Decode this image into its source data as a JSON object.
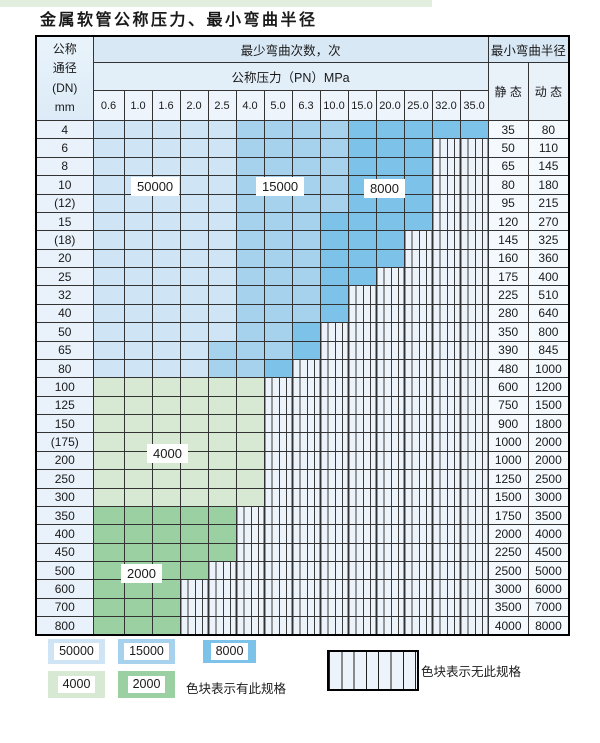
{
  "title": "金属软管公称压力、最小弯曲半径",
  "table": {
    "dn_header_lines": [
      "公称",
      "通径",
      "(DN)",
      "mm"
    ],
    "bend_cycles_header": "最少弯曲次数，次",
    "pressure_header": "公称压力（PN）MPa",
    "radius_header": "最小弯曲半径",
    "static_label": "静 态",
    "dynamic_label": "动 态",
    "pressure_columns": [
      "0.6",
      "1.0",
      "1.6",
      "2.0",
      "2.5",
      "4.0",
      "5.0",
      "6.3",
      "10.0",
      "15.0",
      "20.0",
      "25.0",
      "32.0",
      "35.0"
    ],
    "zone_legend_key": {
      "A": "50000",
      "B": "15000",
      "C": "8000",
      "D": "4000",
      "E": "2000",
      "H": "no-spec-hatch"
    },
    "zone_labels": [
      {
        "text": "50000"
      },
      {
        "text": "15000"
      },
      {
        "text": "8000"
      },
      {
        "text": "4000"
      },
      {
        "text": "2000"
      }
    ],
    "rows": [
      {
        "dn": "4",
        "cells": "AAAAABBBBCCCCC",
        "static": "35",
        "dynamic": "80"
      },
      {
        "dn": "6",
        "cells": "AAAAABBBBCCCHH",
        "static": "50",
        "dynamic": "110"
      },
      {
        "dn": "8",
        "cells": "AAAAABBBBCCCHH",
        "static": "65",
        "dynamic": "145"
      },
      {
        "dn": "10",
        "cells": "AAAAABBBBCCCHH",
        "static": "80",
        "dynamic": "180"
      },
      {
        "dn": "(12)",
        "cells": "AAAAABBBBCCCHH",
        "static": "95",
        "dynamic": "215"
      },
      {
        "dn": "15",
        "cells": "AAAAABBBCCCCHH",
        "static": "120",
        "dynamic": "270"
      },
      {
        "dn": "(18)",
        "cells": "AAAAABBBCCCHHH",
        "static": "145",
        "dynamic": "325"
      },
      {
        "dn": "20",
        "cells": "AAAAABBBCCCHHH",
        "static": "160",
        "dynamic": "360"
      },
      {
        "dn": "25",
        "cells": "AAAAABBBCCHHHH",
        "static": "175",
        "dynamic": "400"
      },
      {
        "dn": "32",
        "cells": "AAAAABBBCHHHHH",
        "static": "225",
        "dynamic": "510"
      },
      {
        "dn": "40",
        "cells": "AAAAABBBCHHHHH",
        "static": "280",
        "dynamic": "640"
      },
      {
        "dn": "50",
        "cells": "AAAAABBCHHHHHH",
        "static": "350",
        "dynamic": "800"
      },
      {
        "dn": "65",
        "cells": "AAAABBBCHHHHHH",
        "static": "390",
        "dynamic": "845"
      },
      {
        "dn": "80",
        "cells": "AAAABBCHHHHHHH",
        "static": "480",
        "dynamic": "1000"
      },
      {
        "dn": "100",
        "cells": "DDDDDDHHHHHHHH",
        "static": "600",
        "dynamic": "1200"
      },
      {
        "dn": "125",
        "cells": "DDDDDDHHHHHHHH",
        "static": "750",
        "dynamic": "1500"
      },
      {
        "dn": "150",
        "cells": "DDDDDDHHHHHHHH",
        "static": "900",
        "dynamic": "1800"
      },
      {
        "dn": "(175)",
        "cells": "DDDDDDHHHHHHHH",
        "static": "1000",
        "dynamic": "2000"
      },
      {
        "dn": "200",
        "cells": "DDDDDDHHHHHHHH",
        "static": "1000",
        "dynamic": "2000"
      },
      {
        "dn": "250",
        "cells": "DDDDDDHHHHHHHH",
        "static": "1250",
        "dynamic": "2500"
      },
      {
        "dn": "300",
        "cells": "DDDDDDHHHHHHHH",
        "static": "1500",
        "dynamic": "3000"
      },
      {
        "dn": "350",
        "cells": "EEEEEHHHHHHHHH",
        "static": "1750",
        "dynamic": "3500"
      },
      {
        "dn": "400",
        "cells": "EEEEEHHHHHHHHH",
        "static": "2000",
        "dynamic": "4000"
      },
      {
        "dn": "450",
        "cells": "EEEEEHHHHHHHHH",
        "static": "2250",
        "dynamic": "4500"
      },
      {
        "dn": "500",
        "cells": "EEEEHHHHHHHHHH",
        "static": "2500",
        "dynamic": "5000"
      },
      {
        "dn": "600",
        "cells": "EEEHHHHHHHHHHH",
        "static": "3000",
        "dynamic": "6000"
      },
      {
        "dn": "700",
        "cells": "EEEHHHHHHHHHHH",
        "static": "3500",
        "dynamic": "7000"
      },
      {
        "dn": "800",
        "cells": "EEEHHHHHHHHHHH",
        "static": "4000",
        "dynamic": "8000"
      }
    ]
  },
  "legend": {
    "swatches": [
      {
        "label": "50000"
      },
      {
        "label": "15000"
      },
      {
        "label": "8000"
      },
      {
        "label": "4000"
      },
      {
        "label": "2000"
      }
    ],
    "has_spec_text": "色块表示有此规格",
    "no_spec_text": "色块表示无此规格"
  },
  "colors": {
    "zone_50000": "#cfe5f6",
    "zone_15000": "#a6d2ee",
    "zone_8000": "#7cc2e9",
    "zone_4000": "#d8e9d3",
    "zone_2000": "#9bd0a3",
    "hatch_bg": "#edf3fa"
  }
}
